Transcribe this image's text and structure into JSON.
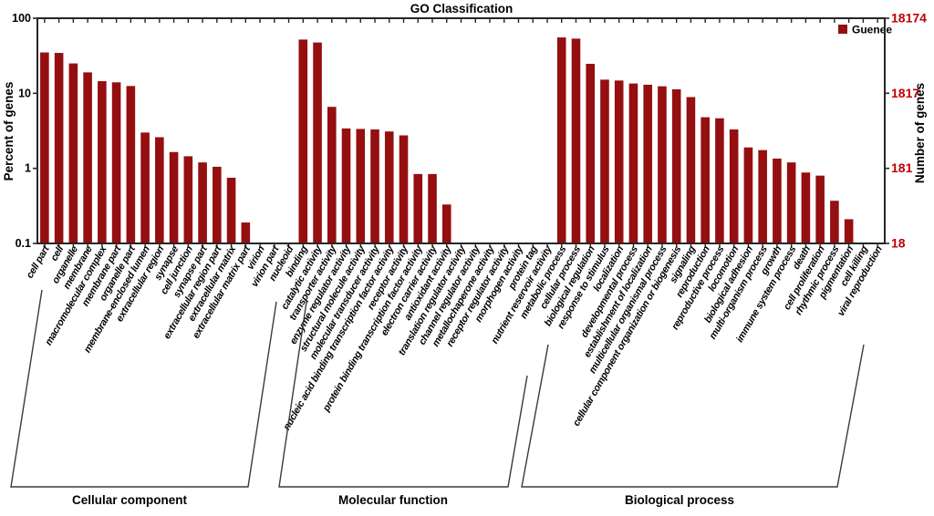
{
  "title": "GO Classification",
  "legend": {
    "series_label": "Guenee"
  },
  "axes": {
    "left": {
      "label": "Percent of genes",
      "scale": "log",
      "ticks": [
        "100",
        "10",
        "1",
        "0.1"
      ]
    },
    "right": {
      "label": "Number of genes",
      "scale": "log",
      "ticks": [
        "18174",
        "1817",
        "181",
        "18"
      ]
    }
  },
  "colors": {
    "bar": "#950f10",
    "right_axis_text": "#c00000",
    "axis_line": "#262626",
    "bracket_line": "#3a3a3a",
    "text": "#000000",
    "background": "#ffffff"
  },
  "chart_data": {
    "type": "bar",
    "title": "GO Classification",
    "series_name": "Guenee",
    "ylabel_left": "Percent of genes",
    "ylabel_right": "Number of genes",
    "yscale": "log",
    "ylim": [
      0.1,
      100
    ],
    "right_axis_total_genes": 18174,
    "right_axis_ticks": [
      18174,
      1817,
      181,
      18
    ],
    "left_axis_ticks": [
      100,
      10,
      1,
      0.1
    ],
    "legend_position": "top-right-inside",
    "grid": false,
    "groups": [
      {
        "name": "Cellular component",
        "categories": [
          "cell part",
          "cell",
          "organelle",
          "membrane",
          "macromolecular complex",
          "membrane part",
          "organelle part",
          "membrane-enclosed lumen",
          "extracellular region",
          "synapse",
          "cell junction",
          "synapse part",
          "extracellular region part",
          "extracellular matrix",
          "extracellular matrix part",
          "virion",
          "virion part",
          "nucleoid"
        ],
        "values_percent": [
          35,
          34.5,
          25,
          19,
          14.5,
          14,
          12.5,
          3.0,
          2.6,
          1.65,
          1.45,
          1.2,
          1.05,
          0.75,
          0.19,
          0,
          0,
          0
        ]
      },
      {
        "name": "Molecular function",
        "categories": [
          "binding",
          "catalytic activity",
          "transporter activity",
          "enzyme regulator activity",
          "structural molecule activity",
          "molecular transducer activity",
          "nucleic acid binding transcription factor activity",
          "receptor activity",
          "protein binding transcription factor activity",
          "electron carrier activity",
          "antioxidant activity",
          "translation regulator activity",
          "channel regulator activity",
          "metallochaperone activity",
          "receptor regulator activity",
          "morphogen activity",
          "protein tag",
          "nutrient reservoir activity"
        ],
        "values_percent": [
          52,
          47.5,
          6.6,
          3.4,
          3.35,
          3.3,
          3.1,
          2.75,
          0.84,
          0.84,
          0.33,
          0,
          0,
          0,
          0,
          0,
          0,
          0
        ]
      },
      {
        "name": "Biological process",
        "categories": [
          "metabolic process",
          "cellular process",
          "biological regulation",
          "response to stimulus",
          "localization",
          "developmental process",
          "establishment of localization",
          "multicellular organismal process",
          "cellular component organization or biogenesis",
          "signaling",
          "reproduction",
          "reproductive process",
          "locomotion",
          "biological adhesion",
          "multi-organism process",
          "growth",
          "immune system process",
          "death",
          "cell proliferation",
          "rhythmic process",
          "pigmentation",
          "cell killing",
          "viral reproduction"
        ],
        "values_percent": [
          55.5,
          53.5,
          24.7,
          15.2,
          14.8,
          13.5,
          13.0,
          12.4,
          11.3,
          8.9,
          4.8,
          4.65,
          3.3,
          1.9,
          1.75,
          1.35,
          1.2,
          0.88,
          0.8,
          0.37,
          0.21,
          0,
          0
        ]
      }
    ]
  }
}
